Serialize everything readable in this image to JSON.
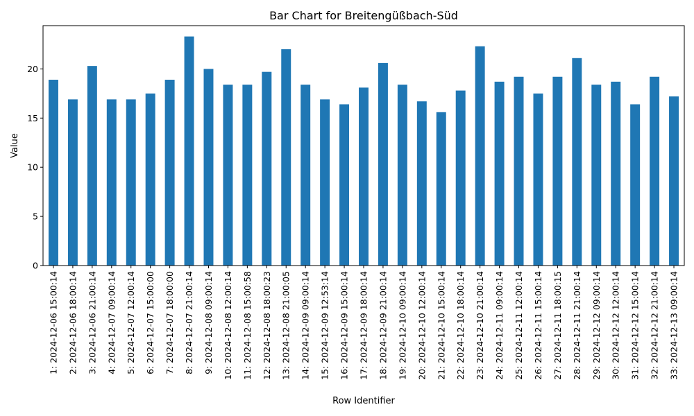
{
  "chart_data": {
    "type": "bar",
    "title": "Bar Chart for Breitengüßbach-Süd",
    "xlabel": "Row Identifier",
    "ylabel": "Value",
    "ylim": [
      0,
      24.4
    ],
    "yticks": [
      0,
      5,
      10,
      15,
      20
    ],
    "bar_color": "#1f77b4",
    "grid": false,
    "categories": [
      "1: 2024-12-06 15:00:14",
      "2: 2024-12-06 18:00:14",
      "3: 2024-12-06 21:00:14",
      "4: 2024-12-07 09:00:14",
      "5: 2024-12-07 12:00:14",
      "6: 2024-12-07 15:00:00",
      "7: 2024-12-07 18:00:00",
      "8: 2024-12-07 21:00:14",
      "9: 2024-12-08 09:00:14",
      "10: 2024-12-08 12:00:14",
      "11: 2024-12-08 15:00:58",
      "12: 2024-12-08 18:00:23",
      "13: 2024-12-08 21:00:05",
      "14: 2024-12-09 09:00:14",
      "15: 2024-12-09 12:53:14",
      "16: 2024-12-09 15:00:14",
      "17: 2024-12-09 18:00:14",
      "18: 2024-12-09 21:00:14",
      "19: 2024-12-10 09:00:14",
      "20: 2024-12-10 12:00:14",
      "21: 2024-12-10 15:00:14",
      "22: 2024-12-10 18:00:14",
      "23: 2024-12-10 21:00:14",
      "24: 2024-12-11 09:00:14",
      "25: 2024-12-11 12:00:14",
      "26: 2024-12-11 15:00:14",
      "27: 2024-12-11 18:00:15",
      "28: 2024-12-11 21:00:14",
      "29: 2024-12-12 09:00:14",
      "30: 2024-12-12 12:00:14",
      "31: 2024-12-12 15:00:14",
      "32: 2024-12-12 21:00:14",
      "33: 2024-12-13 09:00:14"
    ],
    "values": [
      18.9,
      16.9,
      20.3,
      16.9,
      16.9,
      17.5,
      18.9,
      23.3,
      20.0,
      18.4,
      18.4,
      19.7,
      22.0,
      18.4,
      16.9,
      16.4,
      18.1,
      20.6,
      18.4,
      16.7,
      15.6,
      17.8,
      22.3,
      18.7,
      19.2,
      17.5,
      19.2,
      21.1,
      18.4,
      18.7,
      16.4,
      19.2,
      17.2
    ]
  }
}
